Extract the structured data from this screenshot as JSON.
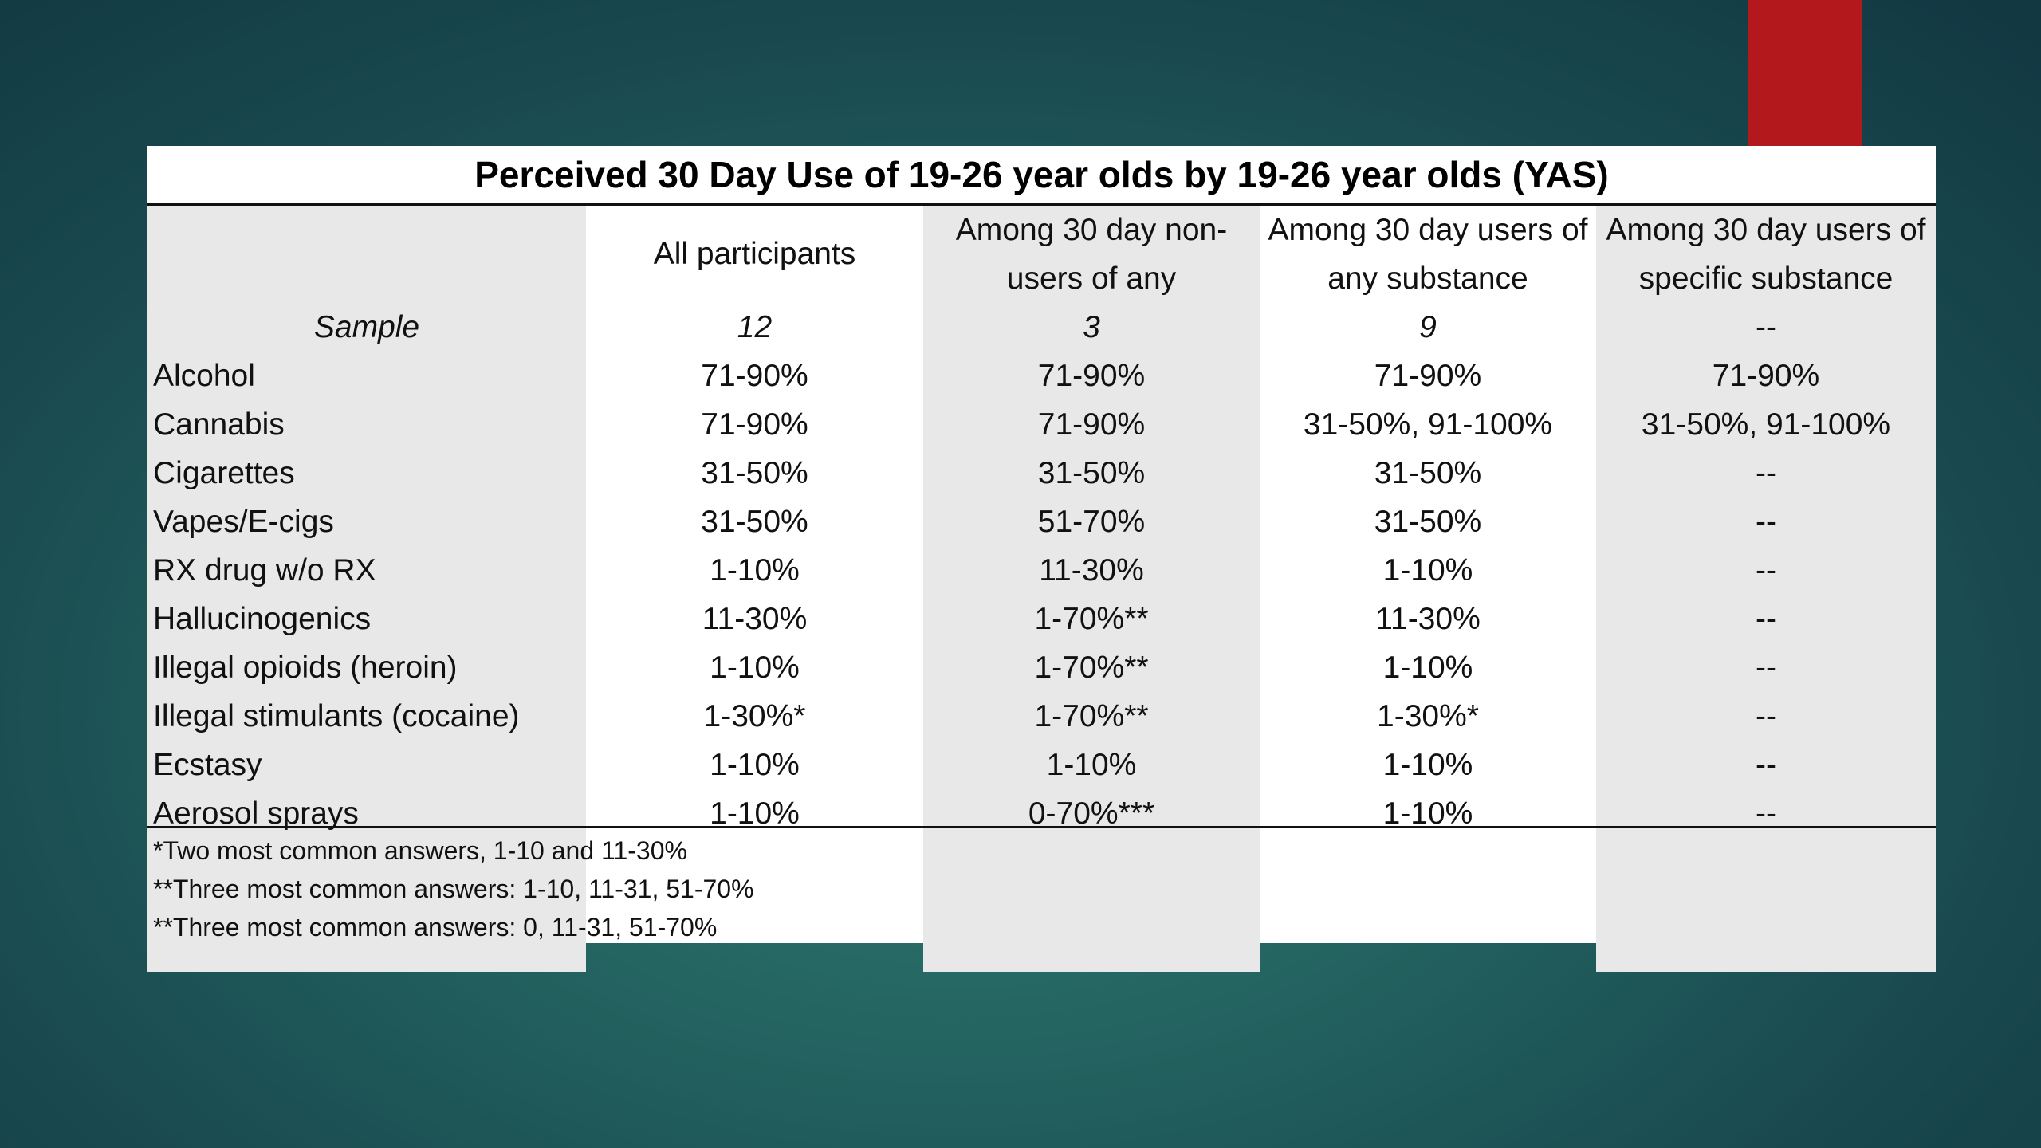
{
  "table": {
    "title": "Perceived 30 Day Use of 19-26 year olds by 19-26 year olds (YAS)",
    "columns": [
      "All participants",
      "Among 30 day non-users of any",
      "Among 30 day users of any substance",
      "Among 30 day users of specific substance"
    ],
    "sample_label": "Sample",
    "sample_values": [
      "12",
      "3",
      "9",
      "--"
    ],
    "rows": [
      {
        "label": "Alcohol",
        "values": [
          "71-90%",
          "71-90%",
          "71-90%",
          "71-90%"
        ]
      },
      {
        "label": "Cannabis",
        "values": [
          "71-90%",
          "71-90%",
          "31-50%, 91-100%",
          "31-50%, 91-100%"
        ]
      },
      {
        "label": "Cigarettes",
        "values": [
          "31-50%",
          "31-50%",
          "31-50%",
          "--"
        ]
      },
      {
        "label": "Vapes/E-cigs",
        "values": [
          "31-50%",
          "51-70%",
          "31-50%",
          "--"
        ]
      },
      {
        "label": "RX drug w/o RX",
        "values": [
          "1-10%",
          "11-30%",
          "1-10%",
          "--"
        ]
      },
      {
        "label": "Hallucinogenics",
        "values": [
          "11-30%",
          "1-70%**",
          "11-30%",
          "--"
        ]
      },
      {
        "label": "Illegal opioids (heroin)",
        "values": [
          "1-10%",
          "1-70%**",
          "1-10%",
          "--"
        ]
      },
      {
        "label": "Illegal stimulants (cocaine)",
        "values": [
          "1-30%*",
          "1-70%**",
          "1-30%*",
          "--"
        ]
      },
      {
        "label": "Ecstasy",
        "values": [
          "1-10%",
          "1-10%",
          "1-10%",
          "--"
        ]
      },
      {
        "label": "Aerosol sprays",
        "values": [
          "1-10%",
          "0-70%***",
          "1-10%",
          "--"
        ]
      }
    ],
    "footnotes": [
      "*Two most common answers, 1-10 and 11-30%",
      "**Three most common answers: 1-10, 11-31, 51-70%",
      "**Three most common answers: 0, 11-31, 51-70%"
    ]
  },
  "colors": {
    "accent": "#b3191c",
    "background_center": "#2f7a72",
    "background_edge": "#123842",
    "shaded_column": "#e8e8e8"
  }
}
